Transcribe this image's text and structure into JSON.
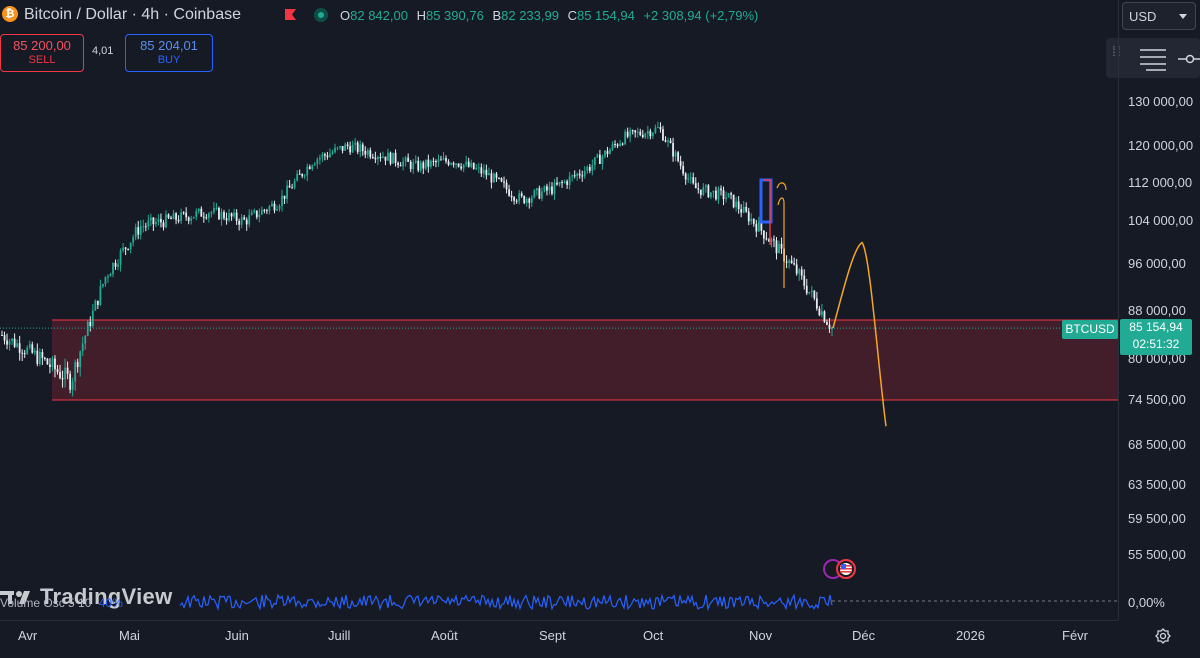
{
  "header": {
    "symbol_title": "Bitcoin / Dollar · 4h · Coinbase",
    "ohlc": {
      "o_key": "O",
      "o_val": "82 842,00",
      "h_key": "H",
      "h_val": "85 390,76",
      "b_key": "B",
      "b_val": "82 233,99",
      "c_key": "C",
      "c_val": "85 154,94",
      "change": "+2 308,94 (+2,79%)"
    }
  },
  "trade": {
    "sell_price": "85 200,00",
    "sell_label": "SELL",
    "spread": "4,01",
    "buy_price": "85 204,01",
    "buy_label": "BUY"
  },
  "currency": "USD",
  "price_axis": {
    "labels": [
      "130 000,00",
      "120 000,00",
      "112 000,00",
      "104 000,00",
      "96 000,00",
      "88 000,00",
      "80 000,00",
      "74 500,00",
      "68 500,00",
      "63 500,00",
      "59 500,00",
      "55 500,00"
    ],
    "ticker": "BTCUSD",
    "last_price": "85 154,94",
    "countdown": "02:51:32"
  },
  "time_axis": [
    "Avr",
    "Mai",
    "Juin",
    "Juill",
    "Août",
    "Sept",
    "Oct",
    "Nov",
    "Déc",
    "2026",
    "Févr"
  ],
  "watermark": "TradingView",
  "indicator": {
    "label": "Volume Osc 5 10",
    "value_fragment": "40%",
    "axis_value": "0,00%"
  },
  "colors": {
    "bg": "#161a25",
    "up": "#22ab94",
    "down": "#f23645",
    "zone": "#4a1f2b",
    "projection": "#f5a623",
    "indicator": "#2962ff"
  },
  "chart_data": {
    "type": "line",
    "series": [
      {
        "x": [
          "Avr",
          "Avr",
          "Avr",
          "Mai",
          "Mai",
          "Mai",
          "Juin",
          "Juin",
          "Juin",
          "Juill",
          "Juill",
          "Juill",
          "Août",
          "Août",
          "Août",
          "Sept",
          "Sept",
          "Sept",
          "Oct",
          "Oct",
          "Oct",
          "Nov",
          "Nov",
          "Nov",
          "Nov"
        ],
        "values": [
          84000,
          80500,
          77000,
          94000,
          103000,
          104500,
          106000,
          104000,
          108000,
          117000,
          120000,
          118000,
          115500,
          117000,
          114000,
          108500,
          111000,
          115500,
          122000,
          124000,
          111000,
          109000,
          102000,
          94500,
          85150
        ]
      }
    ],
    "ylim": [
      52000,
      136000
    ],
    "zones": [
      {
        "from": 74500,
        "to": 86500
      }
    ],
    "projection": [
      85150,
      100000,
      71000
    ]
  }
}
